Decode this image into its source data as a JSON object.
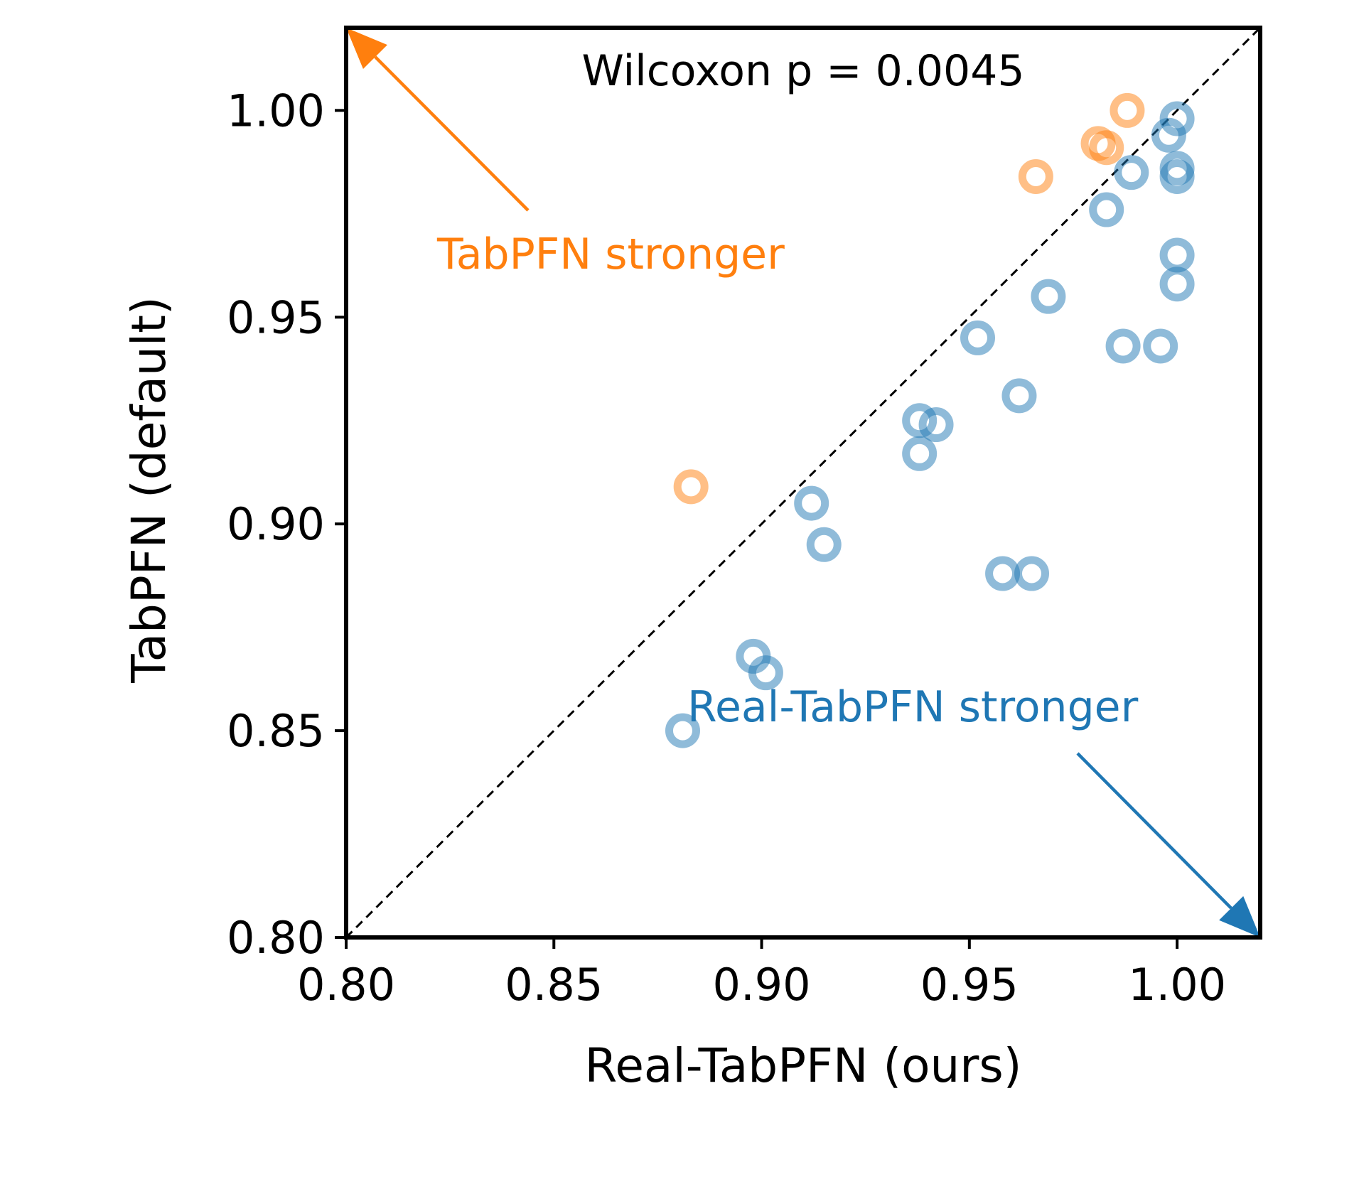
{
  "chart_data": {
    "type": "scatter",
    "title": "",
    "xlabel": "Real-TabPFN (ours)",
    "ylabel": "TabPFN (default)",
    "xlim": [
      0.8,
      1.02
    ],
    "ylim": [
      0.8,
      1.02
    ],
    "xticks": [
      "0.80",
      "0.85",
      "0.90",
      "0.95",
      "1.00"
    ],
    "yticks": [
      "0.80",
      "0.85",
      "0.90",
      "0.95",
      "1.00"
    ],
    "grid": false,
    "diagonal": "y = x (dashed)",
    "annotation": "Wilcoxon p = 0.0045",
    "colors": {
      "tabpfn": "#ff7f0e",
      "real_tabpfn": "#1f77b4"
    },
    "regions": [
      {
        "label": "TabPFN stronger",
        "color": "#ff7f0e",
        "arrow": "toward top-left"
      },
      {
        "label": "Real-TabPFN stronger",
        "color": "#1f77b4",
        "arrow": "toward bottom-right"
      }
    ],
    "series": [
      {
        "group": "tabpfn",
        "color": "#ff7f0e",
        "points": [
          {
            "x": 0.988,
            "y": 1.0
          },
          {
            "x": 0.981,
            "y": 0.992
          },
          {
            "x": 0.983,
            "y": 0.991
          },
          {
            "x": 0.966,
            "y": 0.984
          },
          {
            "x": 0.883,
            "y": 0.909
          }
        ]
      },
      {
        "group": "real_tabpfn",
        "color": "#1f77b4",
        "points": [
          {
            "x": 1.0,
            "y": 0.998
          },
          {
            "x": 0.998,
            "y": 0.994
          },
          {
            "x": 1.0,
            "y": 0.986
          },
          {
            "x": 1.0,
            "y": 0.984
          },
          {
            "x": 0.989,
            "y": 0.985
          },
          {
            "x": 0.983,
            "y": 0.976
          },
          {
            "x": 1.0,
            "y": 0.965
          },
          {
            "x": 1.0,
            "y": 0.958
          },
          {
            "x": 0.969,
            "y": 0.955
          },
          {
            "x": 0.952,
            "y": 0.945
          },
          {
            "x": 0.987,
            "y": 0.943
          },
          {
            "x": 0.996,
            "y": 0.943
          },
          {
            "x": 0.962,
            "y": 0.931
          },
          {
            "x": 0.938,
            "y": 0.925
          },
          {
            "x": 0.942,
            "y": 0.924
          },
          {
            "x": 0.938,
            "y": 0.917
          },
          {
            "x": 0.912,
            "y": 0.905
          },
          {
            "x": 0.915,
            "y": 0.895
          },
          {
            "x": 0.958,
            "y": 0.888
          },
          {
            "x": 0.965,
            "y": 0.888
          },
          {
            "x": 0.898,
            "y": 0.868
          },
          {
            "x": 0.901,
            "y": 0.864
          },
          {
            "x": 0.881,
            "y": 0.85
          }
        ]
      }
    ]
  }
}
